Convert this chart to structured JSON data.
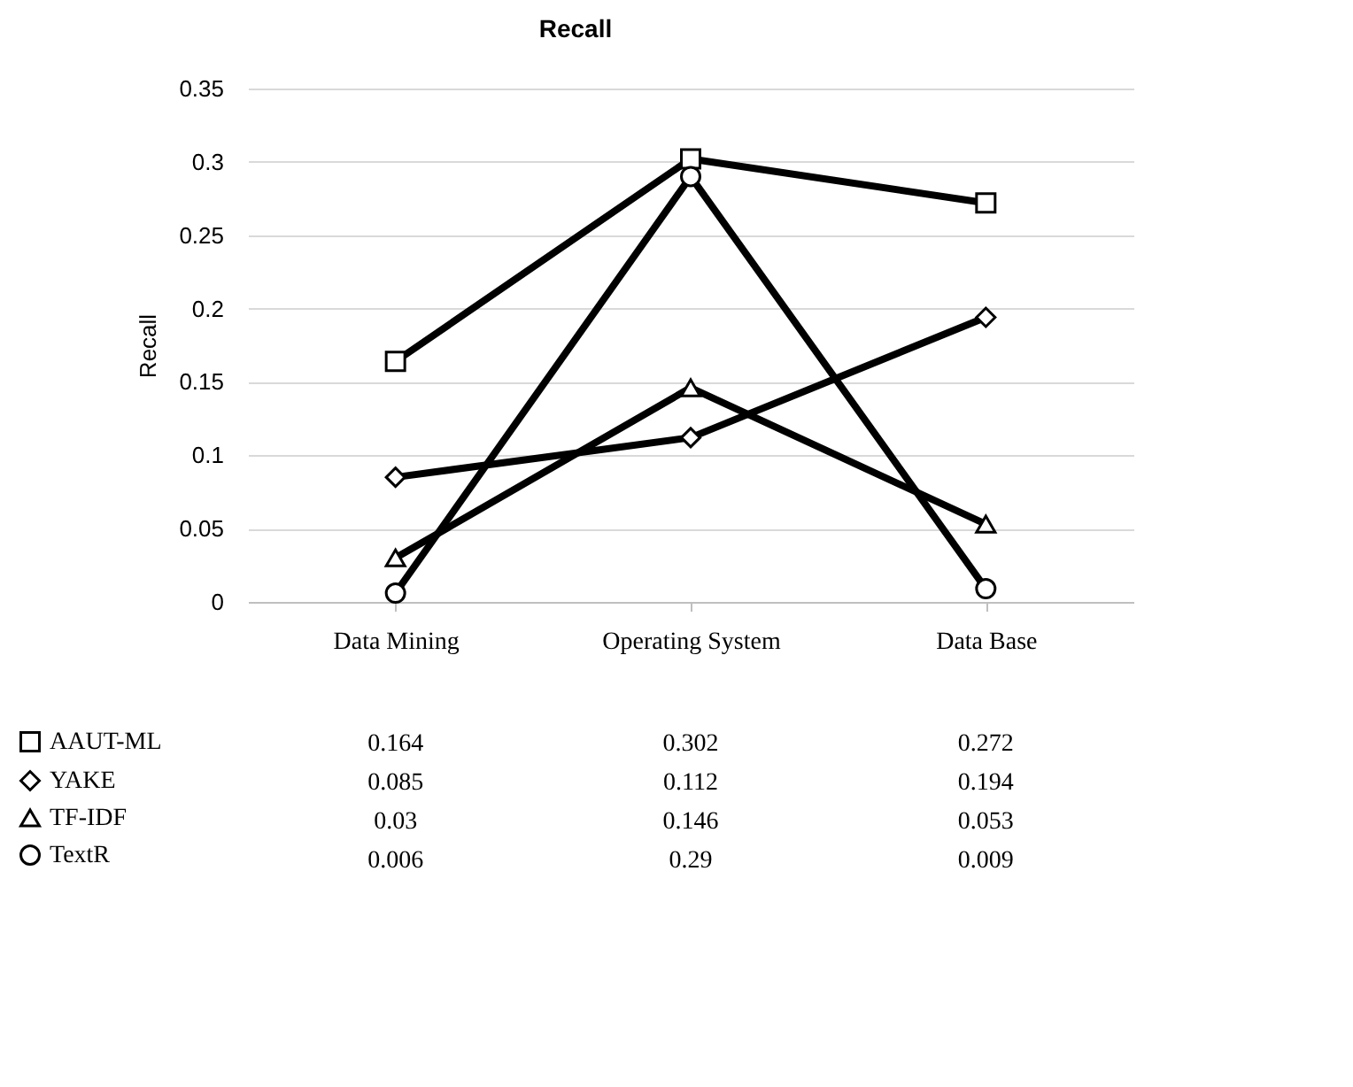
{
  "chart_data": {
    "type": "line",
    "title": "Recall",
    "ylabel": "Recall",
    "categories": [
      "Data Mining",
      "Operating System",
      "Data Base"
    ],
    "series": [
      {
        "name": "AAUT-ML",
        "color": "#000000",
        "marker": "square",
        "values": [
          0.164,
          0.302,
          0.272
        ]
      },
      {
        "name": "YAKE",
        "color": "#000000",
        "marker": "diamond",
        "values": [
          0.085,
          0.112,
          0.194
        ]
      },
      {
        "name": "TF-IDF",
        "color": "#000000",
        "marker": "triangle",
        "values": [
          0.03,
          0.146,
          0.053
        ]
      },
      {
        "name": "TextR",
        "color": "#000000",
        "marker": "circle",
        "values": [
          0.006,
          0.29,
          0.009
        ]
      }
    ],
    "ylim": [
      0,
      0.35
    ],
    "yticks": [
      0,
      0.05,
      0.1,
      0.15,
      0.2,
      0.25,
      0.3,
      0.35
    ],
    "grid": "y",
    "legend": "bottom left",
    "data_labels": true,
    "line_style": "solid"
  }
}
